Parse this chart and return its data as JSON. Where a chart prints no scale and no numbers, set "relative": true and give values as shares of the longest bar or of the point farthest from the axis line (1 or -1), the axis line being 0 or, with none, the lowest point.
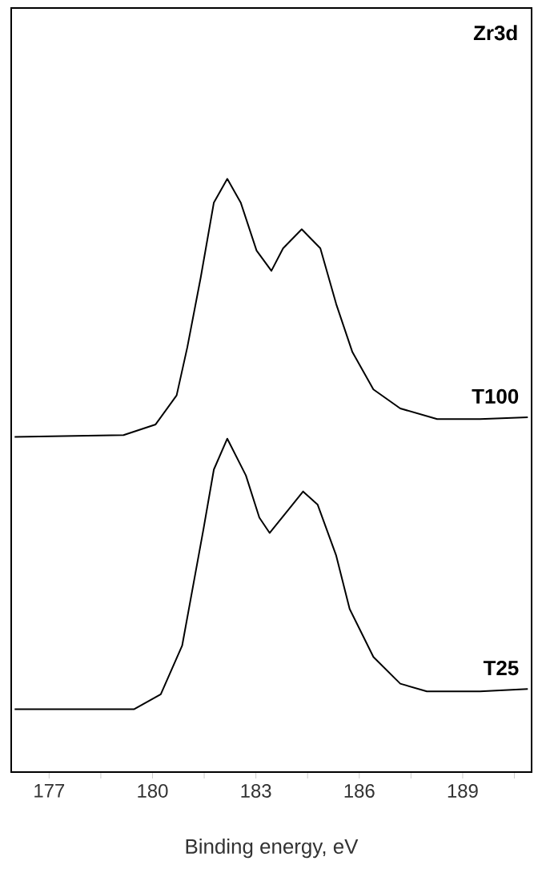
{
  "chart_data": {
    "type": "line",
    "title": "Zr3d",
    "xlabel": "Binding energy, eV",
    "relative": true,
    "xlim": [
      175.9,
      191.0
    ],
    "xticks": [
      177,
      {
        "value": 178.5,
        "label": null
      },
      180,
      {
        "value": 181.5,
        "label": null
      },
      183,
      {
        "value": 184.5,
        "label": null
      },
      186,
      {
        "value": 187.5,
        "label": null
      },
      189,
      {
        "value": 190.5,
        "label": null
      }
    ],
    "grid": false,
    "legend": false,
    "tick_labels": "x",
    "marker": "none",
    "line_style": "solid",
    "series": [
      {
        "name": "T100",
        "color": "#000000",
        "x": [
          176.0,
          179.16,
          180.09,
          180.7,
          181.01,
          181.4,
          181.78,
          182.17,
          182.56,
          183.02,
          183.45,
          183.79,
          184.33,
          184.87,
          185.33,
          185.8,
          186.41,
          187.19,
          188.26,
          189.5,
          190.89
        ],
        "values": [
          0.565,
          0.568,
          0.586,
          0.635,
          0.716,
          0.834,
          0.96,
          1.0,
          0.96,
          0.879,
          0.845,
          0.883,
          0.915,
          0.883,
          0.789,
          0.708,
          0.645,
          0.613,
          0.595,
          0.595,
          0.598
        ]
      },
      {
        "name": "T25",
        "color": "#000000",
        "x": [
          176.0,
          179.47,
          180.24,
          180.86,
          181.48,
          181.78,
          182.17,
          182.71,
          183.1,
          183.4,
          183.94,
          184.37,
          184.79,
          185.33,
          185.72,
          186.41,
          187.19,
          187.96,
          189.5,
          190.89
        ],
        "values": [
          0.106,
          0.106,
          0.131,
          0.213,
          0.41,
          0.51,
          0.562,
          0.5,
          0.429,
          0.403,
          0.442,
          0.473,
          0.451,
          0.365,
          0.275,
          0.194,
          0.149,
          0.136,
          0.136,
          0.14
        ]
      }
    ]
  }
}
